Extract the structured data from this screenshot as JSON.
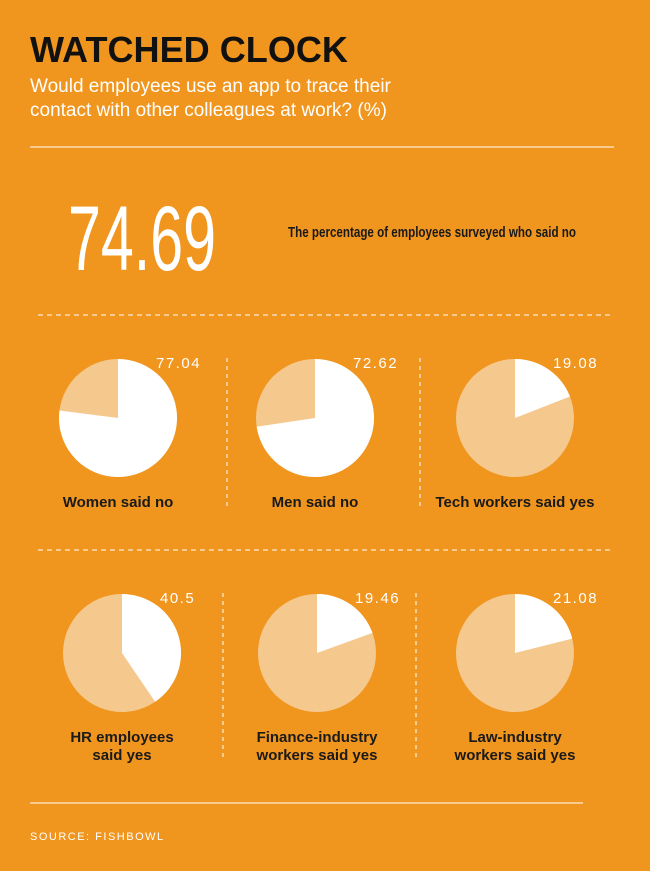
{
  "header": {
    "title": "WATCHED CLOCK",
    "subtitle": "Would employees use an app to trace their\ncontact with other colleagues at work? (%)"
  },
  "headline": {
    "value": 74.69,
    "label": "The percentage of employees surveyed who said no"
  },
  "chart_data": [
    {
      "type": "pie",
      "title": "Women said no",
      "values": [
        77.04
      ],
      "color": "#ffffff",
      "track_color": "#f5c98e"
    },
    {
      "type": "pie",
      "title": "Men said no",
      "values": [
        72.62
      ],
      "color": "#ffffff",
      "track_color": "#f5c98e"
    },
    {
      "type": "pie",
      "title": "Tech workers said yes",
      "values": [
        19.08
      ],
      "color": "#ffffff",
      "track_color": "#f5c98e"
    },
    {
      "type": "pie",
      "title": "HR employees\nsaid yes",
      "values": [
        40.5
      ],
      "color": "#ffffff",
      "track_color": "#f5c98e"
    },
    {
      "type": "pie",
      "title": "Finance-industry\nworkers said yes",
      "values": [
        19.46
      ],
      "color": "#ffffff",
      "track_color": "#f5c98e"
    },
    {
      "type": "pie",
      "title": "Law-industry\nworkers said yes",
      "values": [
        21.08
      ],
      "color": "#ffffff",
      "track_color": "#f5c98e"
    }
  ],
  "source": "SOURCE: FISHBOWL"
}
